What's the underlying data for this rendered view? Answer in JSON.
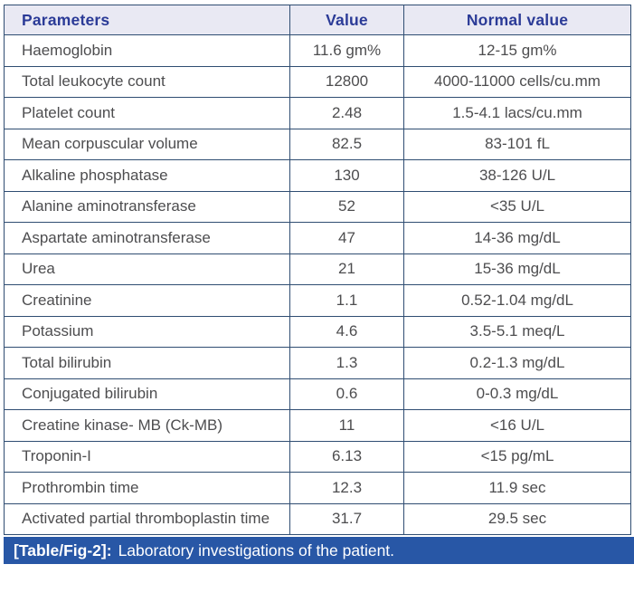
{
  "table": {
    "headers": [
      "Parameters",
      "Value",
      "Normal value"
    ],
    "rows": [
      {
        "parameter": "Haemoglobin",
        "value": "11.6 gm%",
        "normal_value": "12-15 gm%"
      },
      {
        "parameter": "Total leukocyte count",
        "value": "12800",
        "normal_value": "4000-11000 cells/cu.mm"
      },
      {
        "parameter": "Platelet count",
        "value": "2.48",
        "normal_value": "1.5-4.1 lacs/cu.mm"
      },
      {
        "parameter": "Mean corpuscular volume",
        "value": "82.5",
        "normal_value": "83-101 fL"
      },
      {
        "parameter": "Alkaline phosphatase",
        "value": "130",
        "normal_value": "38-126 U/L"
      },
      {
        "parameter": "Alanine aminotransferase",
        "value": "52",
        "normal_value": "<35 U/L"
      },
      {
        "parameter": "Aspartate aminotransferase",
        "value": "47",
        "normal_value": "14-36 mg/dL"
      },
      {
        "parameter": "Urea",
        "value": "21",
        "normal_value": "15-36 mg/dL"
      },
      {
        "parameter": "Creatinine",
        "value": "1.1",
        "normal_value": "0.52-1.04 mg/dL"
      },
      {
        "parameter": "Potassium",
        "value": "4.6",
        "normal_value": "3.5-5.1 meq/L"
      },
      {
        "parameter": "Total bilirubin",
        "value": "1.3",
        "normal_value": "0.2-1.3 mg/dL"
      },
      {
        "parameter": "Conjugated bilirubin",
        "value": "0.6",
        "normal_value": "0-0.3 mg/dL"
      },
      {
        "parameter": "Creatine kinase- MB (Ck-MB)",
        "value": "11",
        "normal_value": "<16 U/L"
      },
      {
        "parameter": "Troponin-I",
        "value": "6.13",
        "normal_value": "<15 pg/mL"
      },
      {
        "parameter": "Prothrombin time",
        "value": "12.3",
        "normal_value": "11.9 sec"
      },
      {
        "parameter": "Activated partial thromboplastin time",
        "value": "31.7",
        "normal_value": "29.5 sec"
      }
    ]
  },
  "caption": {
    "label": "[Table/Fig-2]:",
    "text": "Laboratory investigations of the patient."
  },
  "colors": {
    "border": "#2f4d72",
    "header_bg": "#e9e9f3",
    "header_text": "#2b3b97",
    "body_text": "#4d4d4f",
    "caption_bg": "#2857a6",
    "caption_text": "#ffffff"
  },
  "chart_data": {
    "type": "table",
    "title": "[Table/Fig-2]: Laboratory investigations of the patient.",
    "columns": [
      "Parameters",
      "Value",
      "Normal value"
    ],
    "rows": [
      [
        "Haemoglobin",
        "11.6 gm%",
        "12-15 gm%"
      ],
      [
        "Total leukocyte count",
        "12800",
        "4000-11000 cells/cu.mm"
      ],
      [
        "Platelet count",
        "2.48",
        "1.5-4.1 lacs/cu.mm"
      ],
      [
        "Mean corpuscular volume",
        "82.5",
        "83-101 fL"
      ],
      [
        "Alkaline phosphatase",
        "130",
        "38-126 U/L"
      ],
      [
        "Alanine aminotransferase",
        "52",
        "<35 U/L"
      ],
      [
        "Aspartate aminotransferase",
        "47",
        "14-36 mg/dL"
      ],
      [
        "Urea",
        "21",
        "15-36 mg/dL"
      ],
      [
        "Creatinine",
        "1.1",
        "0.52-1.04 mg/dL"
      ],
      [
        "Potassium",
        "4.6",
        "3.5-5.1 meq/L"
      ],
      [
        "Total bilirubin",
        "1.3",
        "0.2-1.3 mg/dL"
      ],
      [
        "Conjugated bilirubin",
        "0.6",
        "0-0.3 mg/dL"
      ],
      [
        "Creatine kinase- MB (Ck-MB)",
        "11",
        "<16 U/L"
      ],
      [
        "Troponin-I",
        "6.13",
        "<15 pg/mL"
      ],
      [
        "Prothrombin time",
        "12.3",
        "11.9 sec"
      ],
      [
        "Activated partial thromboplastin time",
        "31.7",
        "29.5 sec"
      ]
    ]
  }
}
